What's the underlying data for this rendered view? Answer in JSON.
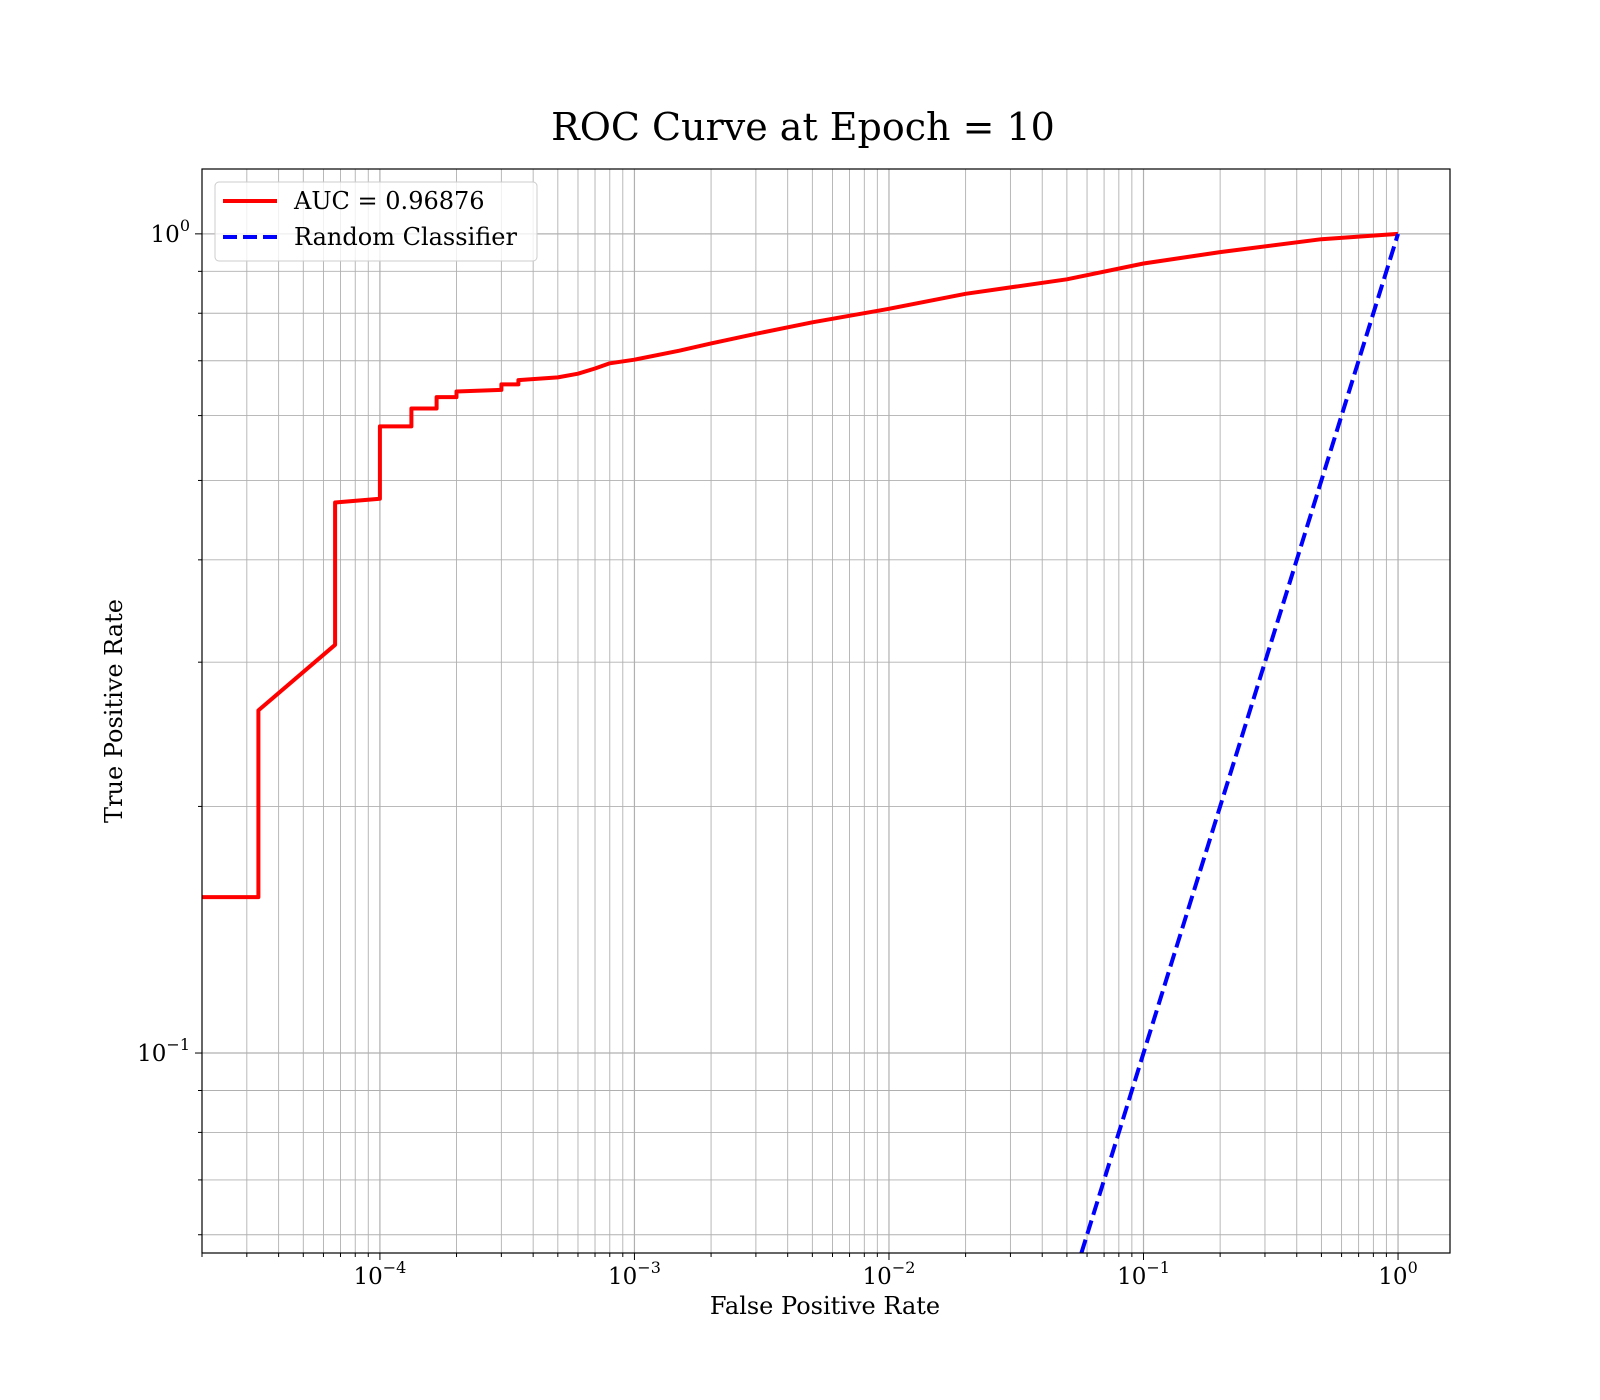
{
  "chart_data": {
    "type": "line",
    "title": "ROC Curve at Epoch = 10",
    "xlabel": "False Positive Rate",
    "ylabel": "True Positive Rate",
    "xscale": "log",
    "yscale": "log",
    "xlim": [
      2e-05,
      1.6
    ],
    "ylim": [
      0.057,
      1.2
    ],
    "grid": true,
    "legend_position": "top-left",
    "x_ticks": [
      {
        "value": 0.0001,
        "base": "10",
        "exp": "−4"
      },
      {
        "value": 0.001,
        "base": "10",
        "exp": "−3"
      },
      {
        "value": 0.01,
        "base": "10",
        "exp": "−2"
      },
      {
        "value": 0.1,
        "base": "10",
        "exp": "−1"
      },
      {
        "value": 1,
        "base": "10",
        "exp": "0"
      }
    ],
    "y_ticks": [
      {
        "value": 0.1,
        "base": "10",
        "exp": "−1"
      },
      {
        "value": 1,
        "base": "10",
        "exp": "0"
      }
    ],
    "series": [
      {
        "name": "AUC = 0.96876",
        "color": "#ff0000",
        "style": "solid",
        "x": [
          2e-05,
          3.33e-05,
          3.33e-05,
          6.67e-05,
          6.67e-05,
          0.0001,
          0.0001,
          0.000133,
          0.000133,
          0.000167,
          0.000167,
          0.0002,
          0.0002,
          0.0003,
          0.0003,
          0.00035,
          0.00035,
          0.0005,
          0.0006,
          0.0007,
          0.0008,
          0.001,
          0.0015,
          0.002,
          0.003,
          0.005,
          0.01,
          0.02,
          0.05,
          0.1,
          0.2,
          0.5,
          1.0
        ],
        "y": [
          0.155,
          0.155,
          0.262,
          0.315,
          0.47,
          0.475,
          0.582,
          0.582,
          0.612,
          0.612,
          0.632,
          0.632,
          0.642,
          0.645,
          0.655,
          0.655,
          0.663,
          0.668,
          0.675,
          0.685,
          0.695,
          0.702,
          0.72,
          0.735,
          0.755,
          0.78,
          0.81,
          0.845,
          0.88,
          0.92,
          0.95,
          0.985,
          1.0
        ]
      },
      {
        "name": "Random Classifier",
        "color": "#0000ff",
        "style": "dashed",
        "x": [
          0.057,
          1.0
        ],
        "y": [
          0.057,
          1.0
        ]
      }
    ]
  }
}
